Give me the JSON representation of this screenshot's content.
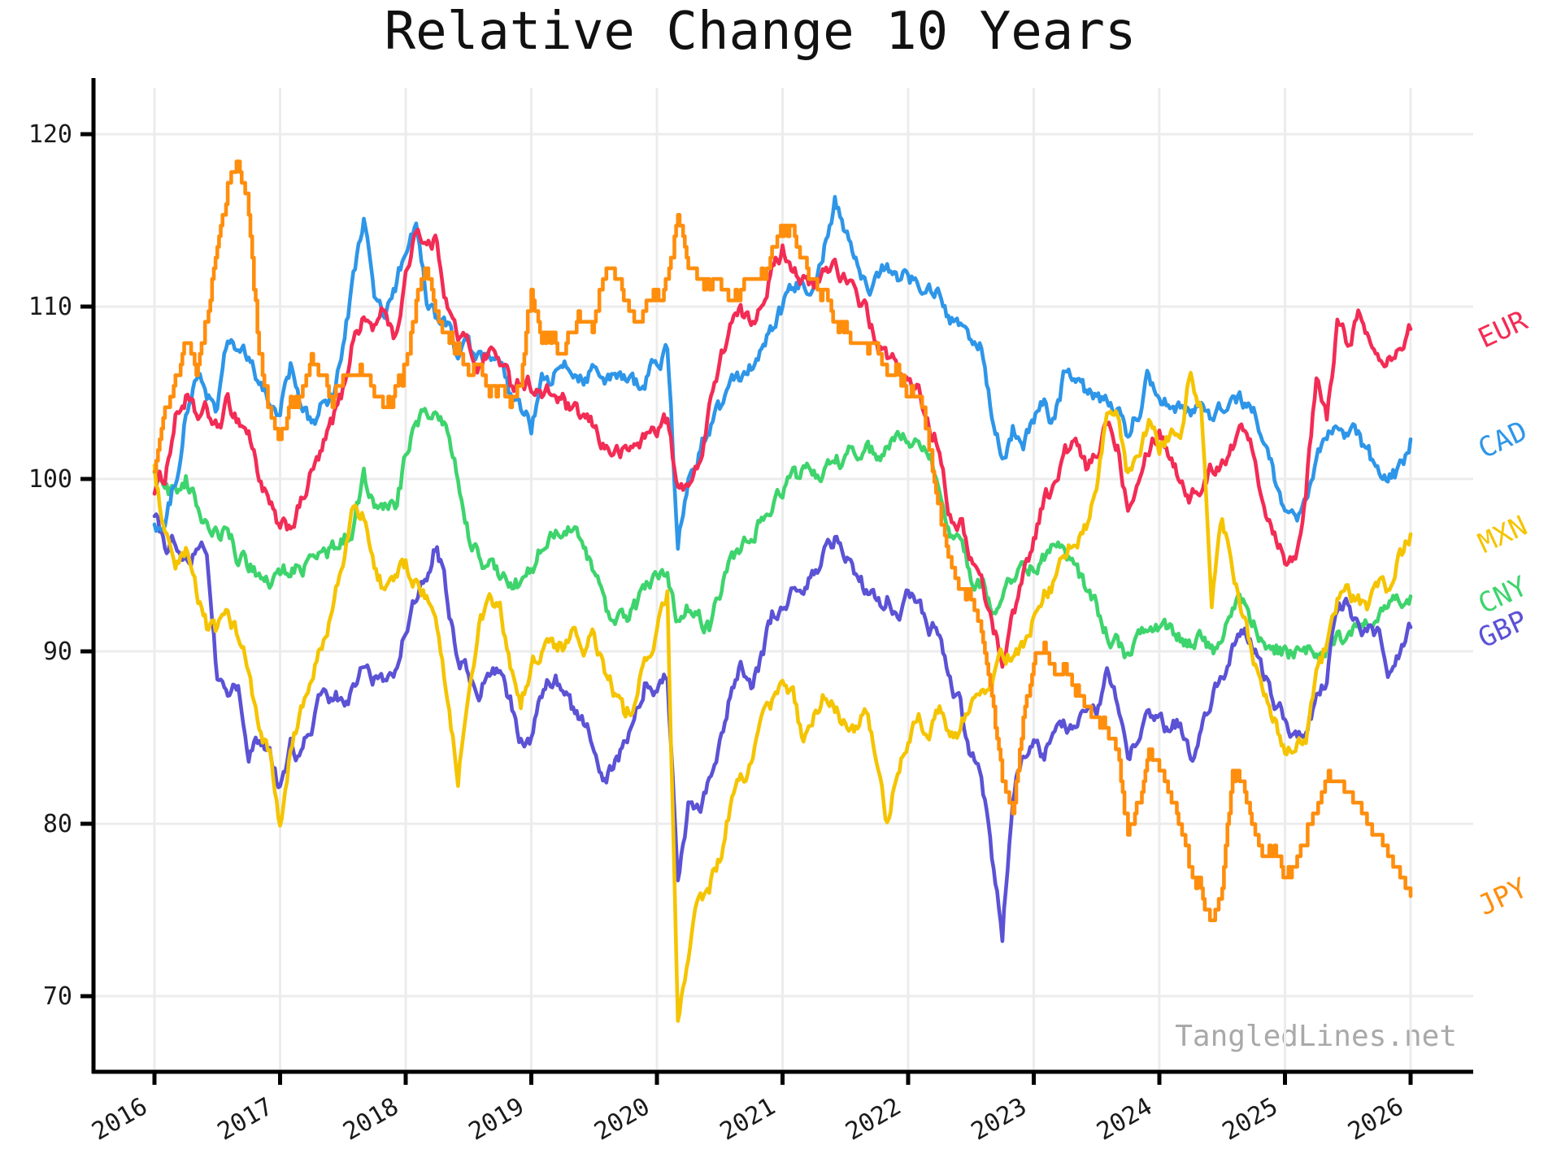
{
  "chart_data": {
    "type": "line",
    "title": "Relative Change 10 Years",
    "watermark": "TangledLines.net",
    "xlabel": "",
    "ylabel": "",
    "grid": true,
    "legend_position": "right-edge-labels-rotated",
    "x_start_year": 2016,
    "x_step_months": 1,
    "x_tick_labels": [
      "2016",
      "2017",
      "2018",
      "2019",
      "2020",
      "2021",
      "2022",
      "2023",
      "2024",
      "2025",
      "2026"
    ],
    "y_tick_labels": [
      "70",
      "80",
      "90",
      "100",
      "110",
      "120"
    ],
    "y_ticks": [
      70,
      80,
      90,
      100,
      110,
      120
    ],
    "xlim": [
      2015.83,
      2026.45
    ],
    "ylim": [
      65.5,
      122.5
    ],
    "series": [
      {
        "name": "EUR",
        "color": "#F22C55",
        "values": [
          99.5,
          100.2,
          103.5,
          104.7,
          103.5,
          103.9,
          102.8,
          104.4,
          103.5,
          102.7,
          100.2,
          98.4,
          96.9,
          97.3,
          98.5,
          100.3,
          101.5,
          103.3,
          105.0,
          108.3,
          109.3,
          108.8,
          109.8,
          108.2,
          111.5,
          114.8,
          113.5,
          113.8,
          110.0,
          108.3,
          107.8,
          106.5,
          107.5,
          106.9,
          105.5,
          105.8,
          105.5,
          104.8,
          104.9,
          104.5,
          103.7,
          103.5,
          103.0,
          101.9,
          101.5,
          101.5,
          102.0,
          102.5,
          103.0,
          103.5,
          99.1,
          100.0,
          100.5,
          104.5,
          106.5,
          109.0,
          109.5,
          109.0,
          110.5,
          112.0,
          113.3,
          112.5,
          111.5,
          111.0,
          112.0,
          112.6,
          111.5,
          110.5,
          110.0,
          107.6,
          107.0,
          106.5,
          105.5,
          105.0,
          103.0,
          102.0,
          98.0,
          97.5,
          95.5,
          94.0,
          91.7,
          89.5,
          92.0,
          94.5,
          96.5,
          99.0,
          99.5,
          101.5,
          102.0,
          100.5,
          101.2,
          103.5,
          102.0,
          98.5,
          100.5,
          102.0,
          102.8,
          101.5,
          100.0,
          99.0,
          99.5,
          100.5,
          101.2,
          102.0,
          102.9,
          102.0,
          98.5,
          97.0,
          95.6,
          95.3,
          99.5,
          105.5,
          103.5,
          108.8,
          108.0,
          109.5,
          108.0,
          107.5,
          107.2,
          108.0,
          108.7
        ]
      },
      {
        "name": "CAD",
        "color": "#2E96E8",
        "values": [
          97.5,
          97.0,
          100.0,
          103.7,
          105.8,
          105.0,
          104.0,
          108.0,
          107.5,
          106.8,
          105.5,
          104.3,
          104.0,
          106.5,
          104.0,
          103.2,
          104.2,
          105.0,
          107.5,
          111.5,
          115.2,
          110.5,
          109.4,
          110.8,
          113.5,
          114.3,
          110.5,
          109.0,
          109.0,
          107.2,
          107.5,
          107.0,
          106.7,
          106.5,
          104.8,
          103.8,
          103.0,
          105.5,
          105.8,
          106.5,
          106.2,
          106.0,
          106.5,
          105.5,
          105.8,
          105.9,
          105.5,
          106.0,
          106.9,
          107.3,
          96.4,
          100.0,
          101.5,
          103.0,
          104.0,
          106.2,
          106.0,
          106.5,
          107.5,
          108.5,
          109.8,
          111.0,
          111.5,
          111.2,
          113.5,
          116.2,
          114.5,
          112.5,
          111.0,
          111.5,
          112.5,
          111.5,
          112.0,
          111.0,
          111.5,
          110.5,
          108.7,
          109.0,
          108.0,
          107.6,
          103.5,
          101.0,
          103.0,
          102.0,
          103.5,
          104.5,
          103.0,
          106.2,
          106.0,
          105.0,
          105.1,
          104.5,
          103.7,
          102.6,
          104.0,
          106.1,
          105.0,
          104.5,
          104.2,
          104.0,
          104.5,
          103.2,
          104.0,
          104.8,
          104.5,
          103.9,
          102.5,
          100.2,
          98.0,
          97.4,
          98.5,
          101.2,
          102.0,
          103.1,
          102.5,
          102.5,
          101.5,
          100.0,
          100.0,
          100.5,
          102.3
        ]
      },
      {
        "name": "MXN",
        "color": "#F5C400",
        "values": [
          100.5,
          96.5,
          94.5,
          95.5,
          93.5,
          91.5,
          91.0,
          92.5,
          91.0,
          88.8,
          85.3,
          84.0,
          79.5,
          84.0,
          86.5,
          88.0,
          90.5,
          92.5,
          95.0,
          98.3,
          97.8,
          95.0,
          93.5,
          94.0,
          95.0,
          94.0,
          93.0,
          91.0,
          87.5,
          82.8,
          88.0,
          91.7,
          92.5,
          92.4,
          89.0,
          87.0,
          89.2,
          90.0,
          90.5,
          90.2,
          91.5,
          89.5,
          91.0,
          88.8,
          87.5,
          86.0,
          87.5,
          89.5,
          91.0,
          93.1,
          68.5,
          72.0,
          75.5,
          76.4,
          78.0,
          81.0,
          82.5,
          83.5,
          85.5,
          87.0,
          88.0,
          87.5,
          84.6,
          86.0,
          87.5,
          86.5,
          86.0,
          85.5,
          86.4,
          84.0,
          80.0,
          83.5,
          84.5,
          86.0,
          85.5,
          86.5,
          85.0,
          85.5,
          87.4,
          88.0,
          88.5,
          89.5,
          90.0,
          90.3,
          92.0,
          93.5,
          94.0,
          95.5,
          96.5,
          97.5,
          99.0,
          103.5,
          104.0,
          100.2,
          101.5,
          103.0,
          102.0,
          102.5,
          103.0,
          106.3,
          104.0,
          92.8,
          97.5,
          95.0,
          92.4,
          89.5,
          88.0,
          86.0,
          84.5,
          84.0,
          85.0,
          88.2,
          90.5,
          92.8,
          93.3,
          93.0,
          92.5,
          93.9,
          93.5,
          95.5,
          96.8
        ]
      },
      {
        "name": "CNY",
        "color": "#3ED46D",
        "values": [
          100.5,
          99.5,
          99.0,
          100.0,
          98.5,
          97.5,
          96.5,
          97.0,
          95.5,
          95.0,
          94.5,
          94.0,
          94.5,
          94.8,
          94.8,
          95.0,
          95.5,
          95.9,
          96.3,
          97.5,
          100.0,
          98.8,
          98.3,
          98.5,
          101.2,
          103.3,
          103.8,
          104.0,
          103.0,
          100.4,
          97.0,
          95.6,
          95.0,
          94.5,
          93.8,
          94.0,
          94.5,
          96.0,
          96.5,
          97.0,
          96.8,
          96.0,
          94.5,
          92.5,
          91.5,
          92.0,
          92.5,
          93.5,
          94.8,
          94.5,
          91.8,
          92.5,
          92.0,
          91.5,
          93.5,
          95.0,
          96.0,
          96.5,
          97.5,
          98.5,
          99.5,
          100.0,
          100.3,
          100.2,
          100.5,
          100.8,
          101.3,
          101.8,
          102.0,
          101.3,
          101.8,
          102.0,
          102.3,
          101.8,
          101.5,
          100.0,
          97.0,
          96.2,
          94.5,
          93.8,
          92.7,
          93.0,
          94.5,
          94.5,
          94.8,
          95.5,
          95.9,
          95.5,
          94.8,
          93.4,
          92.8,
          91.0,
          90.5,
          89.6,
          90.5,
          91.5,
          91.3,
          91.0,
          90.8,
          90.5,
          90.5,
          90.0,
          90.0,
          92.5,
          92.8,
          91.8,
          90.7,
          90.3,
          89.8,
          89.8,
          89.8,
          90.0,
          90.4,
          90.6,
          91.1,
          91.4,
          91.8,
          92.2,
          92.5,
          93.0,
          93.2
        ]
      },
      {
        "name": "GBP",
        "color": "#5B52D5",
        "values": [
          98.0,
          96.0,
          96.5,
          95.0,
          96.0,
          96.0,
          88.5,
          87.5,
          88.0,
          83.5,
          85.0,
          84.5,
          82.0,
          84.5,
          84.0,
          85.5,
          87.5,
          87.0,
          87.5,
          87.5,
          89.5,
          88.5,
          88.0,
          89.0,
          91.5,
          93.0,
          94.5,
          96.5,
          93.0,
          89.5,
          89.0,
          87.5,
          89.0,
          88.8,
          87.0,
          85.0,
          85.0,
          87.5,
          88.5,
          88.0,
          86.3,
          86.0,
          84.5,
          82.7,
          83.5,
          84.5,
          86.5,
          88.6,
          88.0,
          88.5,
          77.3,
          81.0,
          80.5,
          82.5,
          84.5,
          87.5,
          89.5,
          88.0,
          89.5,
          92.0,
          92.4,
          93.5,
          94.0,
          94.5,
          95.5,
          96.3,
          95.5,
          94.5,
          93.5,
          92.7,
          93.0,
          92.0,
          93.3,
          92.5,
          91.5,
          91.0,
          88.1,
          87.0,
          84.2,
          83.0,
          78.0,
          73.5,
          82.0,
          84.0,
          84.5,
          84.0,
          85.0,
          85.5,
          86.0,
          86.5,
          86.3,
          88.5,
          87.0,
          84.0,
          85.5,
          86.4,
          86.0,
          85.5,
          86.0,
          83.7,
          85.5,
          87.5,
          88.1,
          90.5,
          91.0,
          90.5,
          88.6,
          87.0,
          86.0,
          85.4,
          85.0,
          87.5,
          88.6,
          92.1,
          93.0,
          91.5,
          91.1,
          90.9,
          88.8,
          90.0,
          91.4
        ]
      },
      {
        "name": "JPY",
        "color": "#FF8E0D",
        "step": true,
        "values": [
          100.5,
          104.0,
          106.0,
          108.0,
          106.3,
          109.5,
          113.5,
          117.0,
          119.0,
          115.8,
          107.5,
          104.0,
          102.0,
          104.5,
          104.8,
          107.0,
          105.8,
          104.5,
          106.0,
          106.8,
          106.3,
          105.0,
          104.0,
          104.8,
          106.5,
          110.0,
          112.3,
          109.5,
          108.5,
          107.6,
          106.0,
          106.5,
          105.0,
          105.5,
          104.5,
          106.0,
          111.0,
          108.5,
          108.0,
          107.5,
          109.0,
          109.5,
          109.0,
          112.0,
          112.0,
          110.0,
          109.5,
          110.0,
          110.5,
          111.0,
          115.5,
          112.5,
          112.0,
          111.4,
          111.5,
          110.7,
          111.0,
          111.5,
          112.0,
          113.0,
          114.3,
          114.8,
          112.5,
          111.4,
          110.5,
          109.3,
          108.5,
          108.0,
          107.5,
          107.8,
          106.5,
          106.8,
          104.8,
          105.0,
          102.0,
          98.5,
          95.5,
          93.8,
          93.0,
          91.0,
          87.5,
          82.5,
          80.5,
          86.0,
          89.5,
          90.3,
          88.5,
          89.0,
          88.1,
          87.0,
          86.3,
          85.5,
          83.9,
          79.8,
          81.5,
          84.2,
          83.0,
          81.5,
          80.0,
          77.5,
          76.5,
          74.2,
          76.5,
          83.5,
          82.0,
          79.5,
          78.0,
          78.5,
          77.0,
          77.4,
          79.5,
          81.0,
          83.0,
          82.5,
          82.0,
          81.0,
          80.5,
          79.5,
          78.0,
          77.0,
          75.8
        ]
      }
    ],
    "colors": {
      "grid": "#ececec",
      "axis": "#000000",
      "tick_label": "#1a1a1a",
      "watermark": "#a9a9a9",
      "background": "#ffffff"
    }
  }
}
